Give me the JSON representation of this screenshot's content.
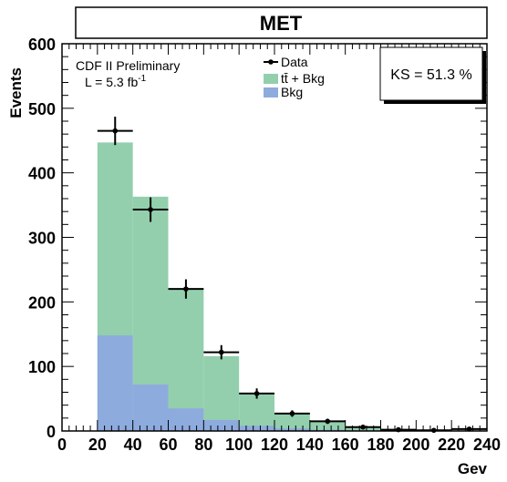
{
  "chart_data": {
    "type": "bar",
    "title": "MET",
    "xlabel": "Gev",
    "ylabel": "Events",
    "xlim": [
      0,
      240
    ],
    "ylim": [
      0,
      600
    ],
    "x_ticks": [
      "0",
      "20",
      "40",
      "60",
      "80",
      "100",
      "120",
      "140",
      "160",
      "180",
      "200",
      "220",
      "240"
    ],
    "y_ticks": [
      "0",
      "100",
      "200",
      "300",
      "400",
      "500",
      "600"
    ],
    "bin_edges": [
      20,
      40,
      60,
      80,
      100,
      120,
      140,
      160,
      180,
      200,
      220,
      240
    ],
    "series": [
      {
        "name": "tt̄ + Bkg",
        "color": "#93cfad",
        "kind": "stacked-total",
        "values": [
          447,
          363,
          221,
          116,
          59,
          28,
          14,
          7,
          3,
          1.5,
          1
        ]
      },
      {
        "name": "Bkg",
        "color": "#8eabde",
        "kind": "background",
        "values": [
          148,
          72,
          35,
          17,
          8,
          4,
          2,
          1,
          0.5,
          0.3,
          0.2
        ]
      },
      {
        "name": "Data",
        "color": "#000000",
        "kind": "points",
        "x": [
          30,
          50,
          70,
          90,
          110,
          130,
          150,
          170,
          190,
          210,
          230
        ],
        "values": [
          465,
          343,
          220,
          122,
          58,
          27,
          15,
          6,
          2,
          1,
          3
        ],
        "errors": [
          22,
          19,
          15,
          11,
          8,
          5,
          4,
          2.5,
          1.5,
          1,
          1.7
        ]
      }
    ],
    "annotations": [
      "CDF II Preliminary",
      "L = 5.3 fb",
      "-1",
      "KS = 51.3 %"
    ],
    "legend": {
      "placement": "top-center",
      "entries": [
        "Data",
        "tt̄ + Bkg",
        "Bkg"
      ]
    },
    "grid": false
  }
}
